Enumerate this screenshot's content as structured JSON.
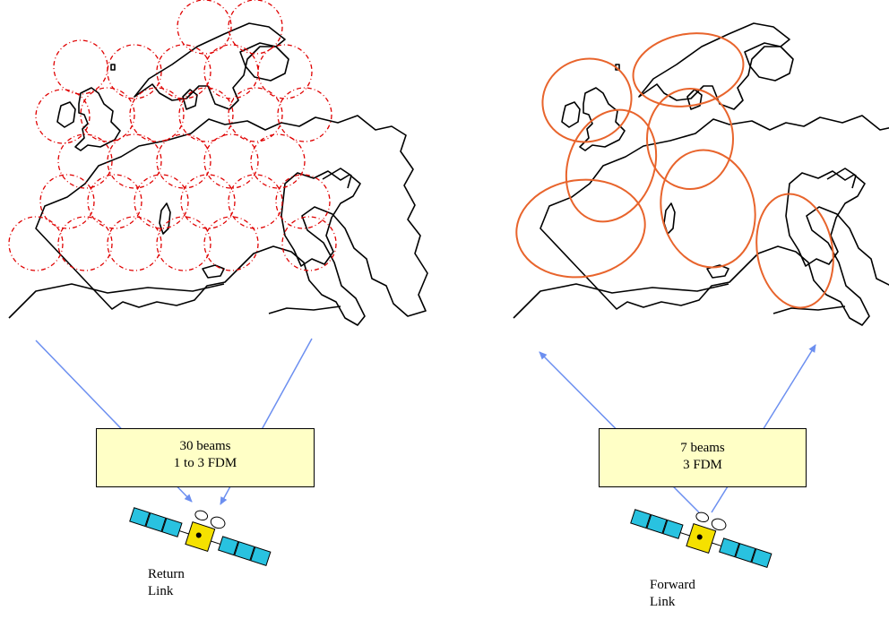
{
  "return_link": {
    "beams": "30 beams",
    "fdm": "1 to 3 FDM",
    "caption_line1": "Return",
    "caption_line2": "Link"
  },
  "forward_link": {
    "beams": "7 beams",
    "fdm": "3 FDM",
    "caption_line1": "Forward",
    "caption_line2": "Link"
  },
  "colors": {
    "return_beams": "#e00000",
    "forward_beams": "#e8642c",
    "arrows": "#6c8ff0",
    "box_fill": "#ffffc6",
    "solar_panel": "#29c2e0",
    "satellite_body": "#f5e100"
  }
}
